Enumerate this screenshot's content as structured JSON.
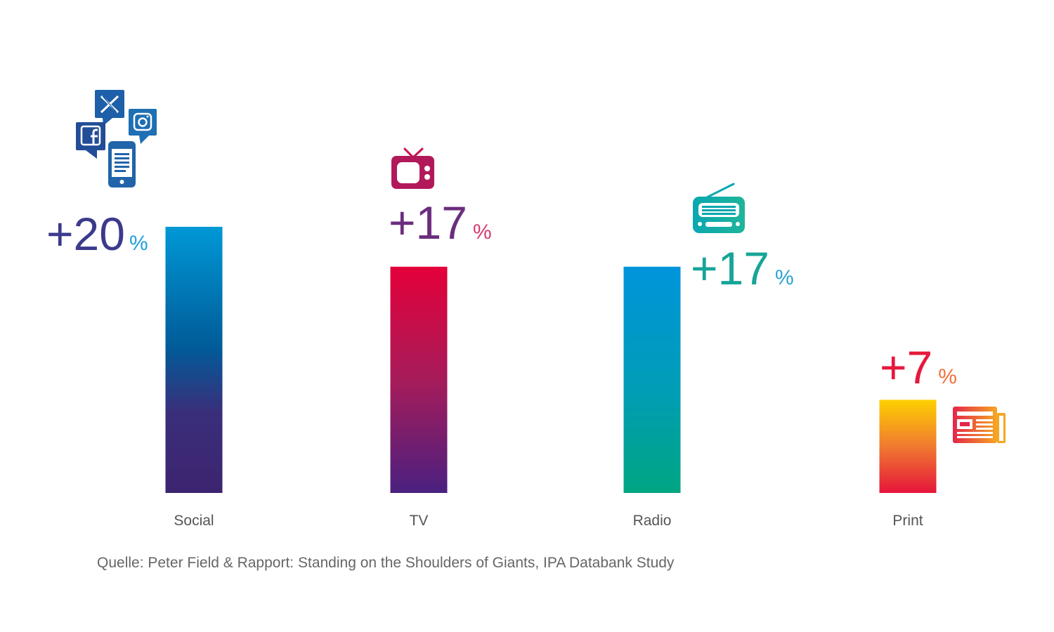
{
  "chart_data": {
    "type": "bar",
    "categories": [
      "Social",
      "TV",
      "Radio",
      "Print"
    ],
    "values": [
      20,
      17,
      17,
      7
    ],
    "value_labels": [
      "+20",
      "+17",
      "+17",
      "+7"
    ],
    "unit": "%",
    "ylim": [
      0,
      21
    ],
    "grid": false,
    "icons": [
      "social-media-icon",
      "tv-icon",
      "radio-icon",
      "newspaper-icon"
    ],
    "colors": {
      "social": [
        "#0098d6",
        "#005c99",
        "#3a2e7a",
        "#3d2470"
      ],
      "tv": [
        "#e4003a",
        "#a61c5a",
        "#4a2080"
      ],
      "radio": [
        "#0094db",
        "#009db5",
        "#00a582"
      ],
      "print": [
        "#fdd000",
        "#f07a30",
        "#e5153a"
      ],
      "social_label": "#3c3a8c",
      "social_pct": "#1e9fd8",
      "tv_label": "#6b2d7e",
      "tv_pct": "#d63a6e",
      "radio_label": "#17a598",
      "radio_pct": "#2aa3d2",
      "print_label": "#e5193c",
      "print_pct": "#f2703a"
    }
  },
  "source": "Quelle: Peter Field & Rapport: Standing on the Shoulders of Giants, IPA Databank Study"
}
